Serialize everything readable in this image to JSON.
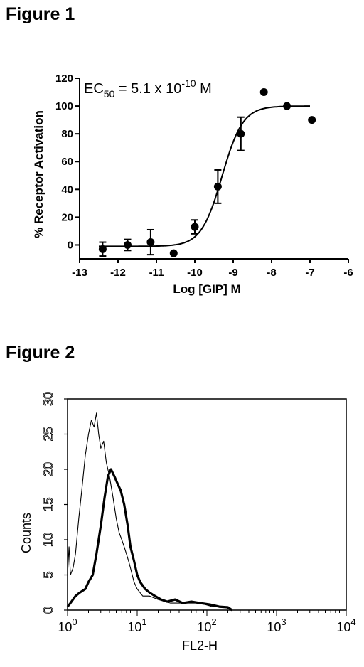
{
  "figures": {
    "fig1_title": "Figure 1",
    "fig2_title": "Figure 2"
  },
  "chart_data": [
    {
      "type": "scatter",
      "title": "",
      "annotation": {
        "prefix": "EC",
        "subscript": "50",
        "middle": " = 5.1 x 10",
        "exponent": "-10",
        "suffix": " M"
      },
      "xlabel": "Log [GIP] M",
      "ylabel": "% Receptor Activation",
      "xlim": [
        -13,
        -6
      ],
      "ylim": [
        -10,
        120
      ],
      "xticks": [
        -13,
        -12,
        -11,
        -10,
        -9,
        -8,
        -7,
        -6
      ],
      "yticks": [
        0,
        20,
        40,
        60,
        80,
        100,
        120
      ],
      "series": [
        {
          "x": [
            -12.4,
            -11.75,
            -11.15,
            -10.55,
            -10.0,
            -9.4,
            -8.8,
            -8.2,
            -7.6,
            -6.95
          ],
          "y": [
            -3,
            0,
            2,
            -6,
            13,
            42,
            80,
            110,
            100,
            90
          ],
          "yerr": [
            5,
            4,
            9,
            0,
            5,
            12,
            12,
            0,
            0,
            0
          ]
        }
      ],
      "fit": {
        "model": "sigmoid",
        "bottom": -1,
        "top": 100,
        "log_ec50": -9.29,
        "hill": 1.6
      },
      "grid": false
    },
    {
      "type": "histogram",
      "title": "",
      "xlabel": "FL2-H",
      "ylabel": "Counts",
      "xscale": "log",
      "xlim": [
        1,
        10000
      ],
      "ylim": [
        0,
        30
      ],
      "yticks": [
        0,
        5,
        10,
        15,
        20,
        25,
        30
      ],
      "xticks": [
        {
          "base": "10",
          "exp": "0"
        },
        {
          "base": "10",
          "exp": "1"
        },
        {
          "base": "10",
          "exp": "2"
        },
        {
          "base": "10",
          "exp": "3"
        },
        {
          "base": "10",
          "exp": "4"
        }
      ],
      "series": [
        {
          "style": "thin",
          "x": [
            1.0,
            1.05,
            1.1,
            1.2,
            1.3,
            1.45,
            1.6,
            1.8,
            2.0,
            2.2,
            2.4,
            2.6,
            2.8,
            3.0,
            3.3,
            3.6,
            4.0,
            4.5,
            5.0,
            5.5,
            6.0,
            6.5,
            7.0,
            7.5,
            8.0,
            9.0,
            10,
            12,
            15,
            20,
            30,
            50,
            80,
            120,
            180,
            220
          ],
          "y": [
            5,
            9,
            5,
            6,
            8,
            13,
            17,
            22,
            25,
            27,
            26,
            28,
            25,
            23,
            24,
            21,
            19,
            16,
            13,
            11,
            10,
            9,
            8,
            7,
            6,
            4,
            3,
            2,
            2,
            1.5,
            1,
            1,
            1,
            0.5,
            0.5,
            0
          ]
        },
        {
          "style": "thick",
          "x": [
            1.0,
            1.1,
            1.3,
            1.5,
            1.8,
            2.0,
            2.3,
            2.6,
            3.0,
            3.4,
            3.8,
            4.2,
            4.7,
            5.2,
            5.8,
            6.5,
            7.3,
            8.0,
            9.0,
            10,
            11,
            13,
            15,
            18,
            22,
            27,
            35,
            45,
            60,
            80,
            110,
            150,
            200,
            230
          ],
          "y": [
            0.5,
            1,
            2,
            2.5,
            3,
            4,
            5,
            8,
            12,
            16,
            19,
            20,
            19,
            18,
            17,
            15,
            12,
            9,
            7,
            5,
            4,
            3,
            2.5,
            2,
            1.5,
            1.2,
            1.5,
            1,
            1.2,
            1,
            0.8,
            0.5,
            0.4,
            0
          ]
        }
      ]
    }
  ]
}
